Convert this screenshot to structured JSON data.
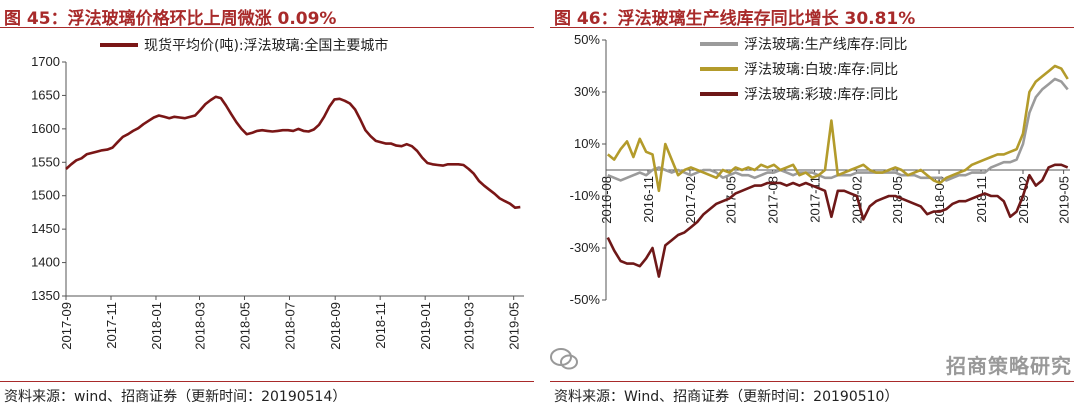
{
  "left_panel": {
    "title": "图 45：浮法玻璃价格环比上周微涨 0.09%",
    "source": "资料来源：wind、招商证券（更新时间：20190514）"
  },
  "right_panel": {
    "title": "图 46：浮法玻璃生产线库存同比增长 30.81%",
    "source": "资料来源：Wind、招商证券（更新时间：20190510）",
    "watermark": "招商策略研究"
  },
  "chart_data": [
    {
      "type": "line",
      "ylim": [
        1350,
        1700
      ],
      "yticks": [
        1350,
        1400,
        1450,
        1500,
        1550,
        1600,
        1650,
        1700
      ],
      "x_tick_labels": [
        "2017-09",
        "2017-11",
        "2018-01",
        "2018-03",
        "2018-05",
        "2018-07",
        "2018-09",
        "2018-11",
        "2019-01",
        "2019-03",
        "2019-05"
      ],
      "legend_position": "top",
      "series": [
        {
          "name": "现货平均价(吨):浮法玻璃:全国主要城市",
          "color": "#7a1616",
          "x": [
            "2017-09-01",
            "2017-09-08",
            "2017-09-15",
            "2017-09-22",
            "2017-09-29",
            "2017-10-13",
            "2017-10-20",
            "2017-10-27",
            "2017-11-03",
            "2017-11-10",
            "2017-11-17",
            "2017-11-24",
            "2017-12-01",
            "2017-12-08",
            "2017-12-15",
            "2017-12-22",
            "2017-12-29",
            "2018-01-05",
            "2018-01-12",
            "2018-01-19",
            "2018-01-26",
            "2018-02-02",
            "2018-02-09",
            "2018-02-23",
            "2018-03-02",
            "2018-03-09",
            "2018-03-16",
            "2018-03-23",
            "2018-03-30",
            "2018-04-06",
            "2018-04-13",
            "2018-04-20",
            "2018-04-27",
            "2018-05-04",
            "2018-05-11",
            "2018-05-18",
            "2018-05-25",
            "2018-06-01",
            "2018-06-08",
            "2018-06-15",
            "2018-06-22",
            "2018-06-29",
            "2018-07-06",
            "2018-07-13",
            "2018-07-20",
            "2018-07-27",
            "2018-08-03",
            "2018-08-10",
            "2018-08-17",
            "2018-08-24",
            "2018-08-31",
            "2018-09-07",
            "2018-09-14",
            "2018-09-21",
            "2018-09-28",
            "2018-10-05",
            "2018-10-12",
            "2018-10-19",
            "2018-10-26",
            "2018-11-02",
            "2018-11-09",
            "2018-11-16",
            "2018-11-23",
            "2018-11-30",
            "2018-12-07",
            "2018-12-14",
            "2018-12-21",
            "2018-12-28",
            "2019-01-04",
            "2019-01-11",
            "2019-01-18",
            "2019-01-25",
            "2019-02-01",
            "2019-02-15",
            "2019-02-22",
            "2019-03-01",
            "2019-03-08",
            "2019-03-15",
            "2019-03-22",
            "2019-03-29",
            "2019-04-05",
            "2019-04-12",
            "2019-04-19",
            "2019-04-26",
            "2019-05-03",
            "2019-05-10"
          ],
          "values": [
            1540,
            1547,
            1553,
            1556,
            1562,
            1566,
            1568,
            1569,
            1572,
            1580,
            1588,
            1592,
            1597,
            1601,
            1607,
            1612,
            1617,
            1620,
            1618,
            1616,
            1618,
            1617,
            1616,
            1620,
            1628,
            1637,
            1643,
            1648,
            1646,
            1635,
            1622,
            1610,
            1600,
            1592,
            1594,
            1597,
            1598,
            1597,
            1596,
            1597,
            1598,
            1598,
            1597,
            1600,
            1597,
            1596,
            1599,
            1606,
            1618,
            1633,
            1644,
            1645,
            1642,
            1638,
            1629,
            1614,
            1598,
            1589,
            1582,
            1580,
            1578,
            1578,
            1575,
            1574,
            1577,
            1574,
            1567,
            1557,
            1549,
            1547,
            1546,
            1545,
            1547,
            1547,
            1546,
            1540,
            1533,
            1522,
            1515,
            1509,
            1503,
            1496,
            1492,
            1488,
            1482,
            1483
          ]
        }
      ]
    },
    {
      "type": "line",
      "ylim": [
        -50,
        50
      ],
      "yticks": [
        -50,
        -30,
        -10,
        10,
        30,
        50
      ],
      "ytick_labels": [
        "-50%",
        "-30%",
        "-10%",
        "10%",
        "30%",
        "50%"
      ],
      "x_tick_labels": [
        "2016-08",
        "2016-11",
        "2017-02",
        "2017-05",
        "2017-08",
        "2017-11",
        "2018-02",
        "2018-05",
        "2018-08",
        "2018-11",
        "2019-02",
        "2019-05"
      ],
      "legend_position": "top-right",
      "series": [
        {
          "name": "浮法玻璃:生产线库存:同比",
          "color": "#9b9b9b",
          "x": [
            "2016-08-05",
            "2016-08-19",
            "2016-09-02",
            "2016-09-16",
            "2016-09-30",
            "2016-10-14",
            "2016-10-28",
            "2016-11-11",
            "2016-11-25",
            "2016-12-09",
            "2016-12-23",
            "2017-01-06",
            "2017-01-20",
            "2017-02-03",
            "2017-02-17",
            "2017-03-03",
            "2017-03-17",
            "2017-03-31",
            "2017-04-14",
            "2017-04-28",
            "2017-05-12",
            "2017-05-26",
            "2017-06-09",
            "2017-06-23",
            "2017-07-07",
            "2017-07-21",
            "2017-08-04",
            "2017-08-18",
            "2017-09-01",
            "2017-09-15",
            "2017-09-29",
            "2017-10-13",
            "2017-10-27",
            "2017-11-10",
            "2017-11-24",
            "2017-12-08",
            "2017-12-22",
            "2018-01-05",
            "2018-01-19",
            "2018-02-02",
            "2018-02-16",
            "2018-03-02",
            "2018-03-16",
            "2018-03-30",
            "2018-04-13",
            "2018-04-27",
            "2018-05-11",
            "2018-05-25",
            "2018-06-08",
            "2018-06-22",
            "2018-07-06",
            "2018-07-20",
            "2018-08-03",
            "2018-08-17",
            "2018-08-31",
            "2018-09-14",
            "2018-09-28",
            "2018-10-12",
            "2018-10-26",
            "2018-11-09",
            "2018-11-23",
            "2018-12-07",
            "2018-12-21",
            "2019-01-04",
            "2019-01-18",
            "2019-02-01",
            "2019-02-15",
            "2019-03-01",
            "2019-03-15",
            "2019-03-29",
            "2019-04-12",
            "2019-04-26",
            "2019-05-10"
          ],
          "values": [
            -2,
            -3,
            -4,
            -3,
            -2,
            -1,
            -2,
            0,
            1,
            0,
            -1,
            0,
            -1,
            -2,
            -1,
            0,
            0,
            -1,
            -3,
            -2,
            -1,
            -2,
            -2,
            -3,
            -2,
            -1,
            -1,
            0,
            -1,
            -2,
            -1,
            -1,
            -1,
            -2,
            -3,
            -3,
            -2,
            -2,
            -2,
            -1,
            -1,
            -1,
            -1,
            -1,
            -1,
            -1,
            -2,
            -2,
            -2,
            -3,
            -3,
            -3,
            -3,
            -4,
            -3,
            -2,
            -2,
            -1,
            -1,
            -1,
            1,
            2,
            3,
            3,
            4,
            10,
            22,
            28,
            31,
            33,
            35,
            34,
            31
          ]
        },
        {
          "name": "浮法玻璃:白玻:库存:同比",
          "color": "#b39b2b",
          "x": [
            "2016-08-05",
            "2016-08-19",
            "2016-09-02",
            "2016-09-16",
            "2016-09-30",
            "2016-10-14",
            "2016-10-28",
            "2016-11-11",
            "2016-11-25",
            "2016-12-09",
            "2016-12-23",
            "2017-01-06",
            "2017-01-20",
            "2017-02-03",
            "2017-02-17",
            "2017-03-03",
            "2017-03-17",
            "2017-03-31",
            "2017-04-14",
            "2017-04-28",
            "2017-05-12",
            "2017-05-26",
            "2017-06-09",
            "2017-06-23",
            "2017-07-07",
            "2017-07-21",
            "2017-08-04",
            "2017-08-18",
            "2017-09-01",
            "2017-09-15",
            "2017-09-29",
            "2017-10-13",
            "2017-10-27",
            "2017-11-10",
            "2017-11-24",
            "2017-12-08",
            "2017-12-22",
            "2018-01-05",
            "2018-01-19",
            "2018-02-02",
            "2018-02-16",
            "2018-03-02",
            "2018-03-16",
            "2018-03-30",
            "2018-04-13",
            "2018-04-27",
            "2018-05-11",
            "2018-05-25",
            "2018-06-08",
            "2018-06-22",
            "2018-07-06",
            "2018-07-20",
            "2018-08-03",
            "2018-08-17",
            "2018-08-31",
            "2018-09-14",
            "2018-09-28",
            "2018-10-12",
            "2018-10-26",
            "2018-11-09",
            "2018-11-23",
            "2018-12-07",
            "2018-12-21",
            "2019-01-04",
            "2019-01-18",
            "2019-02-01",
            "2019-02-15",
            "2019-03-01",
            "2019-03-15",
            "2019-03-29",
            "2019-04-12",
            "2019-04-26",
            "2019-05-10"
          ],
          "values": [
            6,
            4,
            8,
            11,
            5,
            12,
            7,
            6,
            -8,
            10,
            4,
            -2,
            0,
            1,
            0,
            -1,
            -2,
            -3,
            0,
            -1,
            1,
            0,
            1,
            0,
            2,
            1,
            2,
            0,
            1,
            2,
            -2,
            -1,
            -3,
            -2,
            0,
            19,
            -2,
            -1,
            0,
            1,
            2,
            0,
            -1,
            -1,
            0,
            1,
            0,
            -2,
            -1,
            0,
            -2,
            -4,
            -5,
            -3,
            -2,
            -1,
            0,
            2,
            3,
            4,
            5,
            6,
            6,
            7,
            8,
            14,
            30,
            34,
            36,
            38,
            40,
            39,
            35
          ]
        },
        {
          "name": "浮法玻璃:彩玻:库存:同比",
          "color": "#6e1818",
          "x": [
            "2016-08-05",
            "2016-08-19",
            "2016-09-02",
            "2016-09-16",
            "2016-09-30",
            "2016-10-14",
            "2016-10-28",
            "2016-11-11",
            "2016-11-25",
            "2016-12-09",
            "2016-12-23",
            "2017-01-06",
            "2017-01-20",
            "2017-02-03",
            "2017-02-17",
            "2017-03-03",
            "2017-03-17",
            "2017-03-31",
            "2017-04-14",
            "2017-04-28",
            "2017-05-12",
            "2017-05-26",
            "2017-06-09",
            "2017-06-23",
            "2017-07-07",
            "2017-07-21",
            "2017-08-04",
            "2017-08-18",
            "2017-09-01",
            "2017-09-15",
            "2017-09-29",
            "2017-10-13",
            "2017-10-27",
            "2017-11-10",
            "2017-11-24",
            "2017-12-08",
            "2017-12-22",
            "2018-01-05",
            "2018-01-19",
            "2018-02-02",
            "2018-02-16",
            "2018-03-02",
            "2018-03-16",
            "2018-03-30",
            "2018-04-13",
            "2018-04-27",
            "2018-05-11",
            "2018-05-25",
            "2018-06-08",
            "2018-06-22",
            "2018-07-06",
            "2018-07-20",
            "2018-08-03",
            "2018-08-17",
            "2018-08-31",
            "2018-09-14",
            "2018-09-28",
            "2018-10-12",
            "2018-10-26",
            "2018-11-09",
            "2018-11-23",
            "2018-12-07",
            "2018-12-21",
            "2019-01-04",
            "2019-01-18",
            "2019-02-01",
            "2019-02-15",
            "2019-03-01",
            "2019-03-15",
            "2019-03-29",
            "2019-04-12",
            "2019-04-26",
            "2019-05-10"
          ],
          "values": [
            -26,
            -31,
            -35,
            -36,
            -36,
            -37,
            -34,
            -30,
            -41,
            -29,
            -27,
            -25,
            -24,
            -22,
            -20,
            -17,
            -15,
            -13,
            -12,
            -11,
            -9,
            -8,
            -7,
            -6,
            -6,
            -5,
            -5,
            -5,
            -6,
            -5,
            -6,
            -5,
            -6,
            -7,
            -8,
            -18,
            -8,
            -8,
            -9,
            -10,
            -19,
            -14,
            -12,
            -11,
            -10,
            -10,
            -11,
            -12,
            -13,
            -14,
            -17,
            -16,
            -16,
            -15,
            -13,
            -12,
            -12,
            -11,
            -10,
            -9,
            -10,
            -10,
            -12,
            -18,
            -16,
            -10,
            -2,
            -6,
            -4,
            1,
            2,
            2,
            1
          ]
        }
      ]
    }
  ]
}
